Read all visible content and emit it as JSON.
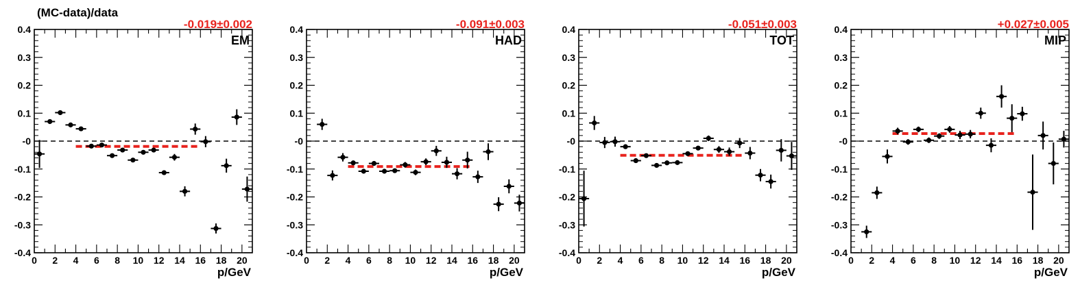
{
  "figure": {
    "ylabel": "(MC-data)/data",
    "xlabel": "p/GeV",
    "colors": {
      "axis": "#000000",
      "points": "#000000",
      "fit": "#e8231e",
      "zero_line": "#000000",
      "annotation": "#e8231e"
    }
  },
  "chart_data": [
    {
      "type": "scatter",
      "label": "EM",
      "fit_text": "-0.019±0.002",
      "fit": {
        "value": -0.019,
        "x_range": [
          4,
          16
        ]
      },
      "xlim": [
        0,
        21
      ],
      "ylim": [
        -0.4,
        0.4
      ],
      "xticks": [
        0,
        2,
        4,
        6,
        8,
        10,
        12,
        14,
        16,
        18,
        20
      ],
      "yticks": [
        -0.4,
        -0.3,
        -0.2,
        -0.1,
        0,
        0.1,
        0.2,
        0.3,
        0.4
      ],
      "ytick_labels": [
        "-0.4",
        "-0.3",
        "-0.2",
        "-0.1",
        "-0",
        "0.1",
        "0.2",
        "0.3",
        "0.4"
      ],
      "points": [
        {
          "x": 0.5,
          "y": -0.046,
          "err": 0.05
        },
        {
          "x": 1.5,
          "y": 0.07,
          "err": 0.008
        },
        {
          "x": 2.5,
          "y": 0.102,
          "err": 0.008
        },
        {
          "x": 3.5,
          "y": 0.058,
          "err": 0.008
        },
        {
          "x": 4.5,
          "y": 0.044,
          "err": 0.006
        },
        {
          "x": 5.5,
          "y": -0.018,
          "err": 0.006
        },
        {
          "x": 6.5,
          "y": -0.014,
          "err": 0.006
        },
        {
          "x": 7.5,
          "y": -0.052,
          "err": 0.006
        },
        {
          "x": 8.5,
          "y": -0.032,
          "err": 0.006
        },
        {
          "x": 9.5,
          "y": -0.068,
          "err": 0.006
        },
        {
          "x": 10.5,
          "y": -0.04,
          "err": 0.006
        },
        {
          "x": 11.5,
          "y": -0.032,
          "err": 0.008
        },
        {
          "x": 12.5,
          "y": -0.113,
          "err": 0.008
        },
        {
          "x": 13.5,
          "y": -0.058,
          "err": 0.012
        },
        {
          "x": 14.5,
          "y": -0.18,
          "err": 0.018
        },
        {
          "x": 15.5,
          "y": 0.043,
          "err": 0.02
        },
        {
          "x": 16.5,
          "y": -0.002,
          "err": 0.02
        },
        {
          "x": 17.5,
          "y": -0.313,
          "err": 0.018
        },
        {
          "x": 18.5,
          "y": -0.088,
          "err": 0.025
        },
        {
          "x": 19.5,
          "y": 0.086,
          "err": 0.028
        },
        {
          "x": 20.5,
          "y": -0.172,
          "err": 0.045
        }
      ]
    },
    {
      "type": "scatter",
      "label": "HAD",
      "fit_text": "-0.091±0.003",
      "fit": {
        "value": -0.091,
        "x_range": [
          4,
          16
        ]
      },
      "xlim": [
        0,
        21
      ],
      "ylim": [
        -0.4,
        0.4
      ],
      "xticks": [
        0,
        2,
        4,
        6,
        8,
        10,
        12,
        14,
        16,
        18,
        20
      ],
      "yticks": [
        -0.4,
        -0.3,
        -0.2,
        -0.1,
        0,
        0.1,
        0.2,
        0.3,
        0.4
      ],
      "ytick_labels": [
        "-0.4",
        "-0.3",
        "-0.2",
        "-0.1",
        "-0",
        "0.1",
        "0.2",
        "0.3",
        "0.4"
      ],
      "points": [
        {
          "x": 1.5,
          "y": 0.06,
          "err": 0.02
        },
        {
          "x": 2.5,
          "y": -0.123,
          "err": 0.018
        },
        {
          "x": 3.5,
          "y": -0.058,
          "err": 0.015
        },
        {
          "x": 4.5,
          "y": -0.078,
          "err": 0.008
        },
        {
          "x": 5.5,
          "y": -0.108,
          "err": 0.008
        },
        {
          "x": 6.5,
          "y": -0.08,
          "err": 0.008
        },
        {
          "x": 7.5,
          "y": -0.108,
          "err": 0.008
        },
        {
          "x": 8.5,
          "y": -0.106,
          "err": 0.008
        },
        {
          "x": 9.5,
          "y": -0.085,
          "err": 0.01
        },
        {
          "x": 10.5,
          "y": -0.112,
          "err": 0.01
        },
        {
          "x": 11.5,
          "y": -0.074,
          "err": 0.012
        },
        {
          "x": 12.5,
          "y": -0.035,
          "err": 0.018
        },
        {
          "x": 13.5,
          "y": -0.076,
          "err": 0.02
        },
        {
          "x": 14.5,
          "y": -0.117,
          "err": 0.02
        },
        {
          "x": 15.5,
          "y": -0.068,
          "err": 0.03
        },
        {
          "x": 16.5,
          "y": -0.128,
          "err": 0.022
        },
        {
          "x": 17.5,
          "y": -0.038,
          "err": 0.03
        },
        {
          "x": 18.5,
          "y": -0.226,
          "err": 0.025
        },
        {
          "x": 19.5,
          "y": -0.162,
          "err": 0.025
        },
        {
          "x": 20.5,
          "y": -0.222,
          "err": 0.03
        }
      ]
    },
    {
      "type": "scatter",
      "label": "TOT",
      "fit_text": "-0.051±0.003",
      "fit": {
        "value": -0.051,
        "x_range": [
          4,
          16
        ]
      },
      "xlim": [
        0,
        21
      ],
      "ylim": [
        -0.4,
        0.4
      ],
      "xticks": [
        0,
        2,
        4,
        6,
        8,
        10,
        12,
        14,
        16,
        18,
        20
      ],
      "yticks": [
        -0.4,
        -0.3,
        -0.2,
        -0.1,
        0,
        0.1,
        0.2,
        0.3,
        0.4
      ],
      "ytick_labels": [
        "-0.4",
        "-0.3",
        "-0.2",
        "-0.1",
        "-0",
        "0.1",
        "0.2",
        "0.3",
        "0.4"
      ],
      "points": [
        {
          "x": 0.5,
          "y": -0.206,
          "err": 0.1
        },
        {
          "x": 1.5,
          "y": 0.065,
          "err": 0.025
        },
        {
          "x": 2.5,
          "y": -0.005,
          "err": 0.02
        },
        {
          "x": 3.5,
          "y": -0.002,
          "err": 0.018
        },
        {
          "x": 4.5,
          "y": -0.02,
          "err": 0.008
        },
        {
          "x": 5.5,
          "y": -0.07,
          "err": 0.006
        },
        {
          "x": 6.5,
          "y": -0.052,
          "err": 0.006
        },
        {
          "x": 7.5,
          "y": -0.087,
          "err": 0.006
        },
        {
          "x": 8.5,
          "y": -0.078,
          "err": 0.006
        },
        {
          "x": 9.5,
          "y": -0.077,
          "err": 0.006
        },
        {
          "x": 10.5,
          "y": -0.045,
          "err": 0.008
        },
        {
          "x": 11.5,
          "y": -0.025,
          "err": 0.008
        },
        {
          "x": 12.5,
          "y": 0.01,
          "err": 0.01
        },
        {
          "x": 13.5,
          "y": -0.03,
          "err": 0.012
        },
        {
          "x": 14.5,
          "y": -0.038,
          "err": 0.015
        },
        {
          "x": 15.5,
          "y": -0.007,
          "err": 0.018
        },
        {
          "x": 16.5,
          "y": -0.043,
          "err": 0.022
        },
        {
          "x": 17.5,
          "y": -0.122,
          "err": 0.022
        },
        {
          "x": 18.5,
          "y": -0.145,
          "err": 0.025
        },
        {
          "x": 19.5,
          "y": -0.033,
          "err": 0.04
        },
        {
          "x": 20.5,
          "y": -0.053,
          "err": 0.05
        }
      ]
    },
    {
      "type": "scatter",
      "label": "MIP",
      "fit_text": "+0.027±0.005",
      "fit": {
        "value": 0.027,
        "x_range": [
          4,
          16
        ]
      },
      "xlim": [
        0,
        21
      ],
      "ylim": [
        -0.4,
        0.4
      ],
      "xticks": [
        0,
        2,
        4,
        6,
        8,
        10,
        12,
        14,
        16,
        18,
        20
      ],
      "yticks": [
        -0.4,
        -0.3,
        -0.2,
        -0.1,
        0,
        0.1,
        0.2,
        0.3,
        0.4
      ],
      "ytick_labels": [
        "-0.4",
        "-0.3",
        "-0.2",
        "-0.1",
        "-0",
        "0.1",
        "0.2",
        "0.3",
        "0.4"
      ],
      "points": [
        {
          "x": 1.5,
          "y": -0.325,
          "err": 0.022
        },
        {
          "x": 2.5,
          "y": -0.185,
          "err": 0.022
        },
        {
          "x": 3.5,
          "y": -0.055,
          "err": 0.025
        },
        {
          "x": 4.5,
          "y": 0.036,
          "err": 0.012
        },
        {
          "x": 5.5,
          "y": -0.003,
          "err": 0.01
        },
        {
          "x": 6.5,
          "y": 0.042,
          "err": 0.01
        },
        {
          "x": 7.5,
          "y": 0.003,
          "err": 0.01
        },
        {
          "x": 8.5,
          "y": 0.018,
          "err": 0.01
        },
        {
          "x": 9.5,
          "y": 0.042,
          "err": 0.012
        },
        {
          "x": 10.5,
          "y": 0.022,
          "err": 0.015
        },
        {
          "x": 11.5,
          "y": 0.025,
          "err": 0.015
        },
        {
          "x": 12.5,
          "y": 0.1,
          "err": 0.02
        },
        {
          "x": 13.5,
          "y": -0.015,
          "err": 0.025
        },
        {
          "x": 14.5,
          "y": 0.16,
          "err": 0.04
        },
        {
          "x": 15.5,
          "y": 0.082,
          "err": 0.05
        },
        {
          "x": 16.5,
          "y": 0.098,
          "err": 0.025
        },
        {
          "x": 17.5,
          "y": -0.183,
          "err": 0.135
        },
        {
          "x": 18.5,
          "y": 0.02,
          "err": 0.05
        },
        {
          "x": 19.5,
          "y": -0.08,
          "err": 0.075
        },
        {
          "x": 20.5,
          "y": 0.007,
          "err": 0.03
        }
      ]
    }
  ]
}
